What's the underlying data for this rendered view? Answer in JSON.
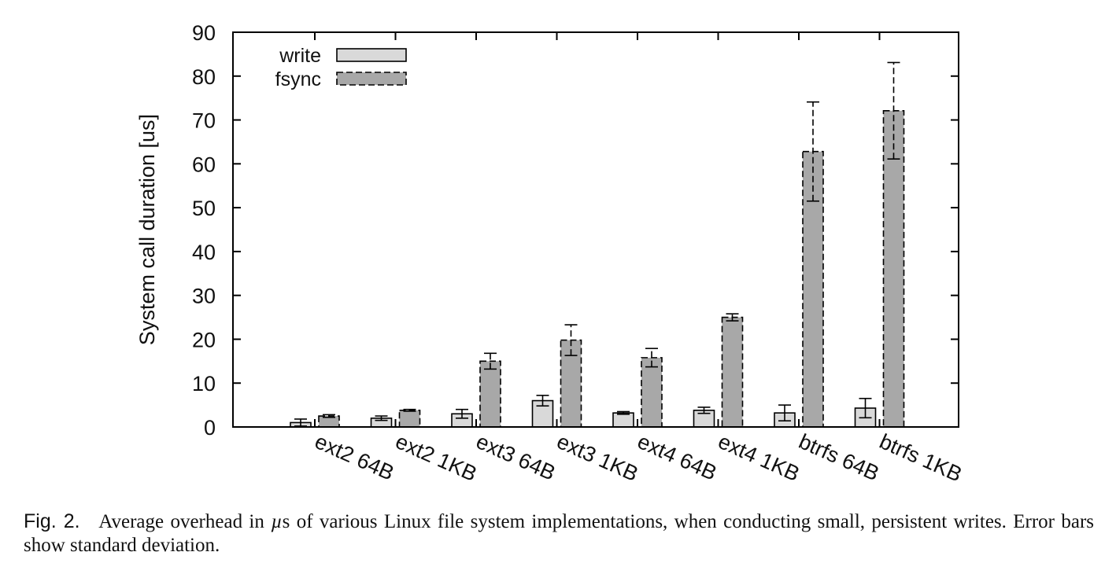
{
  "chart_data": {
    "type": "bar",
    "ylabel": "System call duration [us]",
    "ylim": [
      0,
      90
    ],
    "yticks": [
      "0",
      "10",
      "20",
      "30",
      "40",
      "50",
      "60",
      "70",
      "80",
      "90"
    ],
    "legend_position": "top-left",
    "grid": false,
    "categories": [
      "ext2 64B",
      "ext2 1KB",
      "ext3 64B",
      "ext3 1KB",
      "ext4 64B",
      "ext4 1KB",
      "btrfs 64B",
      "btrfs 1KB"
    ],
    "series": [
      {
        "name": "write",
        "values": [
          1.0,
          2.0,
          3.0,
          6.0,
          3.2,
          3.8,
          3.2,
          4.3
        ],
        "error": [
          0.8,
          0.5,
          1.0,
          1.2,
          0.3,
          0.7,
          1.8,
          2.2
        ],
        "color": "#d9d9d9",
        "line_style": "solid"
      },
      {
        "name": "fsync",
        "values": [
          2.5,
          3.8,
          15.0,
          19.8,
          15.8,
          25.0,
          62.8,
          72.1
        ],
        "error": [
          0.3,
          0.2,
          1.8,
          3.5,
          2.1,
          0.8,
          11.3,
          11.0
        ],
        "color": "#a8a8a8",
        "line_style": "dashed"
      }
    ]
  },
  "caption": {
    "label": "Fig. 2.",
    "text_before_mu": "Average overhead in ",
    "mu": "µ",
    "text_after_mu": "s of various Linux file system implementations, when conducting small, persistent writes. Error bars show standard deviation."
  }
}
